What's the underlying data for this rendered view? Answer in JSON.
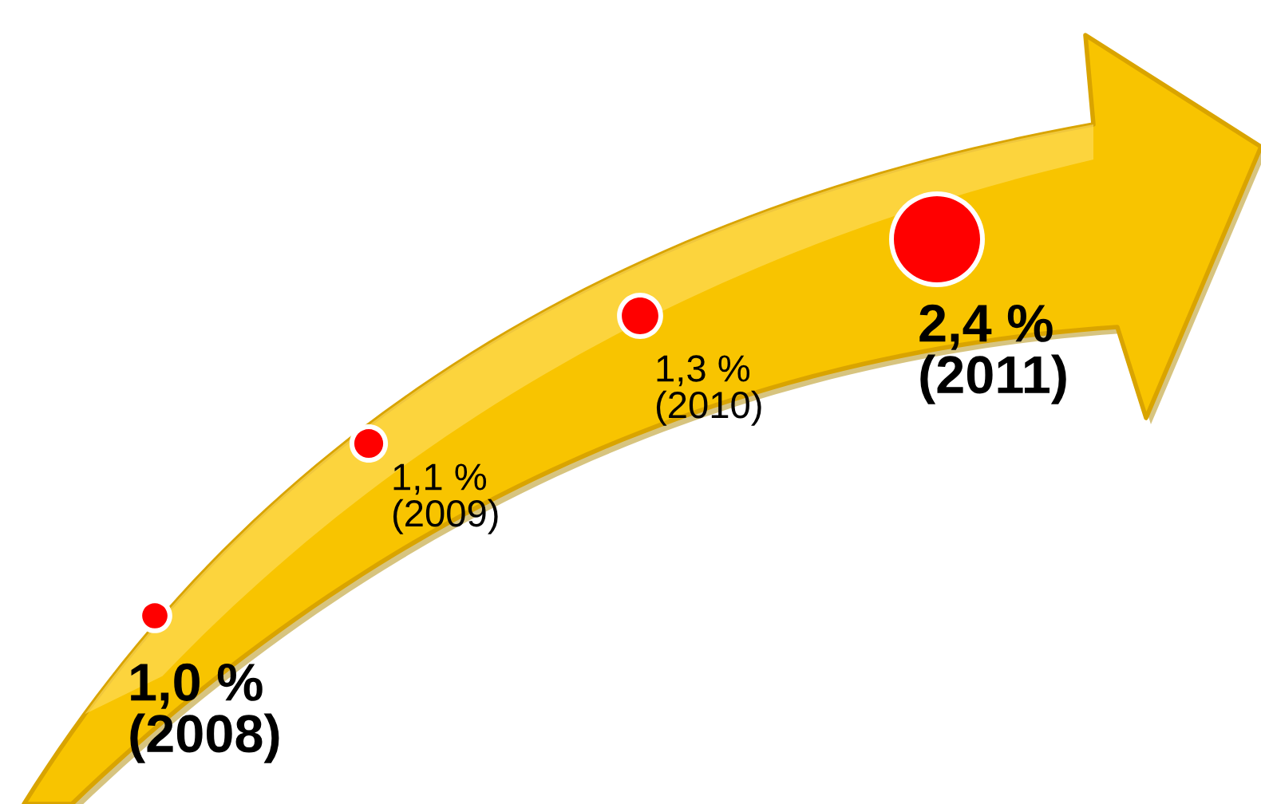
{
  "chart_data": {
    "type": "other",
    "categories": [
      "(2008)",
      "(2009)",
      "(2010)",
      "(2011)"
    ],
    "values": [
      1.0,
      1.1,
      1.3,
      2.4
    ],
    "value_labels": [
      "1,0 %",
      "1,1 %",
      "1,3 %",
      "2,4 %"
    ],
    "colors": [
      "#ff0000",
      "#ff0000",
      "#ff0000",
      "#ff0000"
    ]
  }
}
